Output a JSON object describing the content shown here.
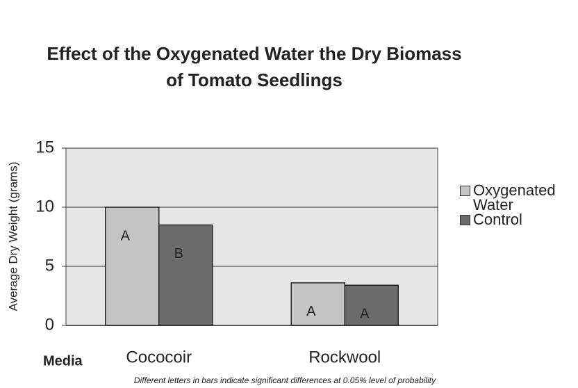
{
  "chart_data": {
    "type": "bar",
    "title": "Effect of the Oxygenated Water the Dry Biomass of Tomato Seedlings",
    "y_label": "Average Dry Weight (grams)",
    "x_label": "Media",
    "footnote": "Different letters in bars indicate significant differences at 0.05% level of probability",
    "categories": [
      "Cococoir",
      "Rockwool"
    ],
    "series": [
      {
        "name": "Oxygenated Water",
        "color": "#c4c4c4",
        "values": [
          10,
          3.6
        ],
        "letters": [
          "A",
          "A"
        ]
      },
      {
        "name": "Control",
        "color": "#6b6b6b",
        "values": [
          8.5,
          3.4
        ],
        "letters": [
          "B",
          "A"
        ]
      }
    ],
    "ylim": [
      0,
      15
    ],
    "yticks": [
      0,
      5,
      10,
      15
    ],
    "grid": true,
    "legend": "right"
  }
}
